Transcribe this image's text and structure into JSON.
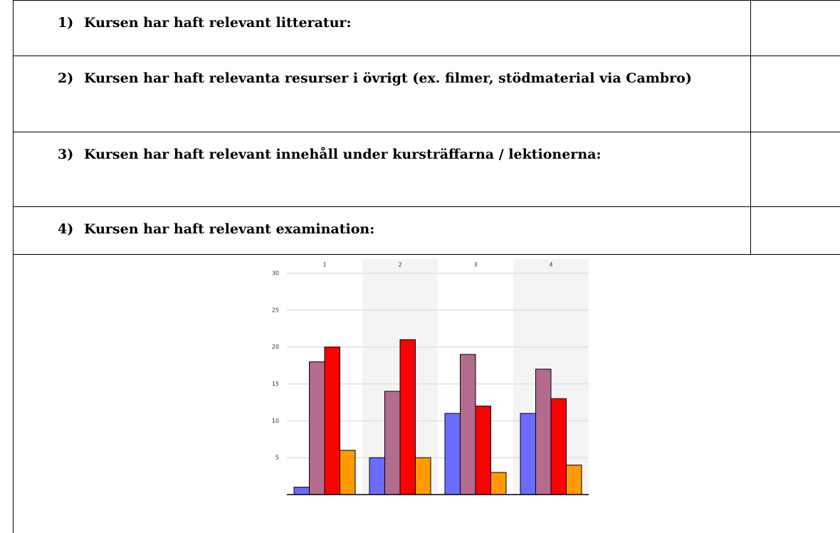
{
  "table": {
    "rows": [
      {
        "number": "1)",
        "text": "Kursen har haft relevant litteratur:"
      },
      {
        "number": "2)",
        "text": "Kursen har haft relevanta resurser i övrigt (ex. filmer, stödmaterial via Cambro)"
      },
      {
        "number": "3)",
        "text": "Kursen har haft relevant innehåll under kursträffarna / lektionerna:"
      },
      {
        "number": "4)",
        "text": "Kursen har haft relevant examination:"
      }
    ]
  },
  "chart_data": {
    "type": "bar",
    "categories": [
      "1",
      "2",
      "3",
      "4"
    ],
    "series": [
      {
        "color": "#6b6bff",
        "values": [
          1,
          5,
          11,
          11
        ]
      },
      {
        "color": "#b36b8e",
        "values": [
          18,
          14,
          19,
          17
        ]
      },
      {
        "color": "#ff0000",
        "values": [
          20,
          21,
          12,
          13
        ]
      },
      {
        "color": "#ff9a00",
        "values": [
          6,
          5,
          3,
          4
        ]
      }
    ],
    "ylim": [
      0,
      30
    ],
    "yticks": [
      5,
      10,
      15,
      20,
      25,
      30
    ],
    "grid": true
  }
}
